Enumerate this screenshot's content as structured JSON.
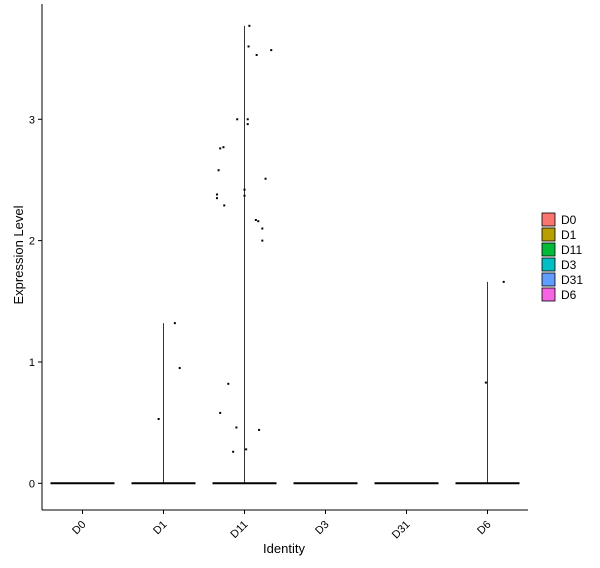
{
  "chart_data": {
    "type": "scatter",
    "subtype": "violin-jitter",
    "xlabel": "Identity",
    "ylabel": "Expression Level",
    "categories": [
      "D0",
      "D1",
      "D11",
      "D3",
      "D31",
      "D6"
    ],
    "ylim": [
      -0.22,
      3.95
    ],
    "yticks": [
      0,
      1,
      2,
      3
    ],
    "grid": false,
    "legend": {
      "placement": "right",
      "items": [
        {
          "label": "D0",
          "color": "#F8766D"
        },
        {
          "label": "D1",
          "color": "#B79F00"
        },
        {
          "label": "D11",
          "color": "#00BA38"
        },
        {
          "label": "D3",
          "color": "#00BFC4"
        },
        {
          "label": "D31",
          "color": "#619CFF"
        },
        {
          "label": "D6",
          "color": "#F564E3"
        }
      ]
    },
    "series": [
      {
        "category": "D0",
        "max": 0,
        "points": []
      },
      {
        "category": "D1",
        "max": 1.32,
        "points": [
          [
            -0.06,
            0.53
          ],
          [
            0.14,
            1.32
          ],
          [
            0.2,
            0.95
          ]
        ]
      },
      {
        "category": "D11",
        "max": 3.77,
        "points": [
          [
            0.06,
            3.77
          ],
          [
            0.05,
            3.6
          ],
          [
            0.15,
            3.53
          ],
          [
            0.33,
            3.57
          ],
          [
            -0.09,
            3.0
          ],
          [
            0.04,
            3.0
          ],
          [
            0.04,
            2.96
          ],
          [
            -0.26,
            2.77
          ],
          [
            -0.3,
            2.76
          ],
          [
            -0.32,
            2.58
          ],
          [
            0.26,
            2.51
          ],
          [
            0.0,
            2.42
          ],
          [
            0.0,
            2.37
          ],
          [
            -0.34,
            2.38
          ],
          [
            -0.34,
            2.35
          ],
          [
            -0.25,
            2.29
          ],
          [
            0.14,
            2.17
          ],
          [
            0.17,
            2.16
          ],
          [
            0.22,
            2.1
          ],
          [
            0.22,
            2.0
          ],
          [
            -0.2,
            0.82
          ],
          [
            -0.3,
            0.58
          ],
          [
            -0.1,
            0.46
          ],
          [
            0.18,
            0.44
          ],
          [
            -0.14,
            0.26
          ],
          [
            0.02,
            0.28
          ]
        ]
      },
      {
        "category": "D3",
        "max": 0,
        "points": []
      },
      {
        "category": "D31",
        "max": 0,
        "points": []
      },
      {
        "category": "D6",
        "max": 1.66,
        "points": [
          [
            -0.02,
            0.83
          ],
          [
            0.2,
            1.66
          ]
        ]
      }
    ]
  }
}
